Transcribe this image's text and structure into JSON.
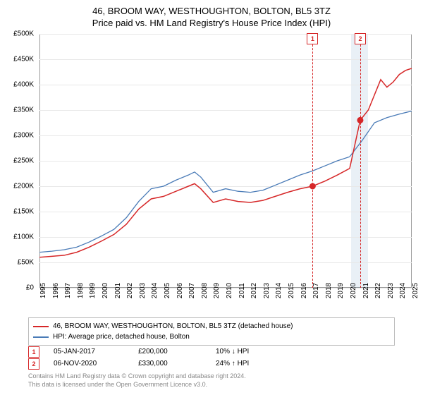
{
  "title_line1": "46, BROOM WAY, WESTHOUGHTON, BOLTON, BL5 3TZ",
  "title_line2": "Price paid vs. HM Land Registry's House Price Index (HPI)",
  "chart": {
    "type": "line",
    "x_start_year": 1995,
    "x_end_year": 2025,
    "ylim": [
      0,
      500000
    ],
    "ytick_step": 50000,
    "y_format": "gbp_k",
    "background_color": "#ffffff",
    "grid_color": "#e8e8e8",
    "axis_color": "#999999",
    "label_fontsize": 10,
    "title_fontsize": 13,
    "highlight_band": {
      "start_year": 2020.1,
      "end_year": 2021.5,
      "fill": "#4682b41f"
    },
    "series": [
      {
        "name": "price_paid",
        "label": "46, BROOM WAY, WESTHOUGHTON, BOLTON, BL5 3TZ (detached house)",
        "color": "#d62728",
        "line_width": 1.5,
        "data": [
          {
            "x": 1995.0,
            "y": 60000
          },
          {
            "x": 1996.0,
            "y": 62000
          },
          {
            "x": 1997.0,
            "y": 64000
          },
          {
            "x": 1998.0,
            "y": 70000
          },
          {
            "x": 1999.0,
            "y": 80000
          },
          {
            "x": 2000.0,
            "y": 92000
          },
          {
            "x": 2001.0,
            "y": 105000
          },
          {
            "x": 2002.0,
            "y": 125000
          },
          {
            "x": 2003.0,
            "y": 155000
          },
          {
            "x": 2004.0,
            "y": 175000
          },
          {
            "x": 2005.0,
            "y": 180000
          },
          {
            "x": 2006.0,
            "y": 190000
          },
          {
            "x": 2007.0,
            "y": 200000
          },
          {
            "x": 2007.5,
            "y": 205000
          },
          {
            "x": 2008.0,
            "y": 195000
          },
          {
            "x": 2009.0,
            "y": 168000
          },
          {
            "x": 2010.0,
            "y": 175000
          },
          {
            "x": 2011.0,
            "y": 170000
          },
          {
            "x": 2012.0,
            "y": 168000
          },
          {
            "x": 2013.0,
            "y": 172000
          },
          {
            "x": 2014.0,
            "y": 180000
          },
          {
            "x": 2015.0,
            "y": 188000
          },
          {
            "x": 2016.0,
            "y": 195000
          },
          {
            "x": 2017.0,
            "y": 200000
          },
          {
            "x": 2018.0,
            "y": 210000
          },
          {
            "x": 2019.0,
            "y": 222000
          },
          {
            "x": 2020.0,
            "y": 235000
          },
          {
            "x": 2020.85,
            "y": 330000
          },
          {
            "x": 2021.5,
            "y": 350000
          },
          {
            "x": 2022.0,
            "y": 380000
          },
          {
            "x": 2022.5,
            "y": 410000
          },
          {
            "x": 2023.0,
            "y": 395000
          },
          {
            "x": 2023.5,
            "y": 405000
          },
          {
            "x": 2024.0,
            "y": 420000
          },
          {
            "x": 2024.5,
            "y": 428000
          },
          {
            "x": 2025.0,
            "y": 432000
          }
        ]
      },
      {
        "name": "hpi",
        "label": "HPI: Average price, detached house, Bolton",
        "color": "#4a7bb7",
        "line_width": 1.3,
        "data": [
          {
            "x": 1995.0,
            "y": 70000
          },
          {
            "x": 1996.0,
            "y": 72000
          },
          {
            "x": 1997.0,
            "y": 75000
          },
          {
            "x": 1998.0,
            "y": 80000
          },
          {
            "x": 1999.0,
            "y": 90000
          },
          {
            "x": 2000.0,
            "y": 102000
          },
          {
            "x": 2001.0,
            "y": 115000
          },
          {
            "x": 2002.0,
            "y": 138000
          },
          {
            "x": 2003.0,
            "y": 170000
          },
          {
            "x": 2004.0,
            "y": 195000
          },
          {
            "x": 2005.0,
            "y": 200000
          },
          {
            "x": 2006.0,
            "y": 212000
          },
          {
            "x": 2007.0,
            "y": 222000
          },
          {
            "x": 2007.5,
            "y": 228000
          },
          {
            "x": 2008.0,
            "y": 218000
          },
          {
            "x": 2009.0,
            "y": 188000
          },
          {
            "x": 2010.0,
            "y": 195000
          },
          {
            "x": 2011.0,
            "y": 190000
          },
          {
            "x": 2012.0,
            "y": 188000
          },
          {
            "x": 2013.0,
            "y": 192000
          },
          {
            "x": 2014.0,
            "y": 202000
          },
          {
            "x": 2015.0,
            "y": 212000
          },
          {
            "x": 2016.0,
            "y": 222000
          },
          {
            "x": 2017.0,
            "y": 230000
          },
          {
            "x": 2018.0,
            "y": 240000
          },
          {
            "x": 2019.0,
            "y": 250000
          },
          {
            "x": 2020.0,
            "y": 258000
          },
          {
            "x": 2021.0,
            "y": 290000
          },
          {
            "x": 2022.0,
            "y": 325000
          },
          {
            "x": 2023.0,
            "y": 335000
          },
          {
            "x": 2024.0,
            "y": 342000
          },
          {
            "x": 2025.0,
            "y": 348000
          }
        ]
      }
    ],
    "sale_markers": [
      {
        "n": "1",
        "year": 2017.01,
        "price": 200000
      },
      {
        "n": "2",
        "year": 2020.85,
        "price": 330000
      }
    ]
  },
  "legend": {
    "border_color": "#bbbbbb"
  },
  "marker_table": {
    "rows": [
      {
        "n": "1",
        "date": "05-JAN-2017",
        "price": "£200,000",
        "delta": "10% ↓ HPI"
      },
      {
        "n": "2",
        "date": "06-NOV-2020",
        "price": "£330,000",
        "delta": "24% ↑ HPI"
      }
    ]
  },
  "footer": {
    "line1": "Contains HM Land Registry data © Crown copyright and database right 2024.",
    "line2": "This data is licensed under the Open Government Licence v3.0."
  }
}
